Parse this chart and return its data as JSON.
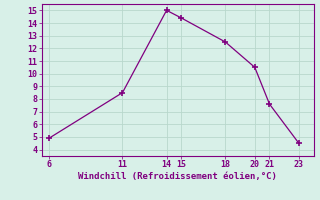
{
  "x": [
    6,
    11,
    14,
    15,
    18,
    20,
    21,
    23
  ],
  "y": [
    4.9,
    8.5,
    15.0,
    14.4,
    12.5,
    10.5,
    7.6,
    4.5
  ],
  "line_color": "#800080",
  "marker_color": "#800080",
  "background_color": "#d8f0e8",
  "grid_color": "#b8d8cc",
  "xlabel": "Windchill (Refroidissement éolien,°C)",
  "xlabel_color": "#800080",
  "tick_color": "#800080",
  "spine_color": "#800080",
  "xlim": [
    5.5,
    24.0
  ],
  "ylim": [
    3.5,
    15.5
  ],
  "xticks": [
    6,
    11,
    14,
    15,
    18,
    20,
    21,
    23
  ],
  "yticks": [
    4,
    5,
    6,
    7,
    8,
    9,
    10,
    11,
    12,
    13,
    14,
    15
  ],
  "figsize": [
    3.2,
    2.0
  ],
  "dpi": 100
}
